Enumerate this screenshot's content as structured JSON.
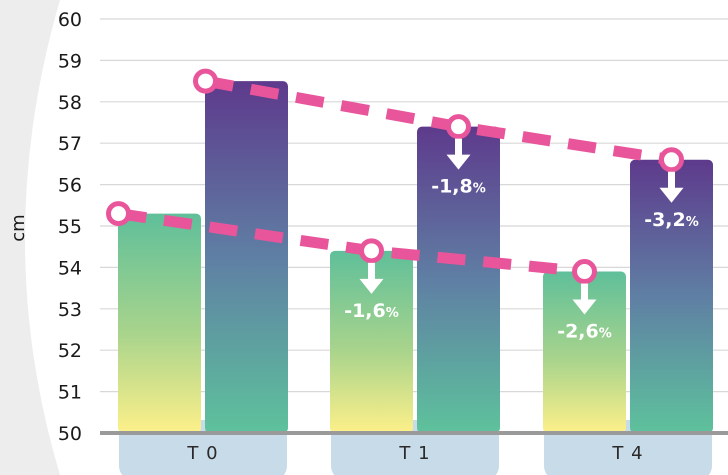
{
  "chart_data": {
    "type": "bar",
    "categories": [
      "T 0",
      "T 1",
      "T 4"
    ],
    "series": [
      {
        "values": [
          55.3,
          54.4,
          53.9
        ]
      },
      {
        "values": [
          58.5,
          57.4,
          56.6
        ]
      }
    ],
    "ylabel": "cm",
    "ylim": [
      50,
      60
    ],
    "yticks": [
      "50",
      "51",
      "52",
      "53",
      "54",
      "55",
      "56",
      "57",
      "58",
      "59",
      "60"
    ],
    "grid": true,
    "annotations": [
      {
        "series": 0,
        "category": 1,
        "text": "-1,6",
        "unit": "%"
      },
      {
        "series": 1,
        "category": 1,
        "text": "-1,8",
        "unit": "%"
      },
      {
        "series": 0,
        "category": 2,
        "text": "-2,6",
        "unit": "%"
      },
      {
        "series": 1,
        "category": 2,
        "text": "-3,2",
        "unit": "%"
      }
    ]
  },
  "colors": {
    "trend_line": "#e8559a",
    "bar_series0_top": "#5fbf9a",
    "bar_series0_bottom": "#fdf08a",
    "bar_series1_top": "#5e3a8c",
    "bar_series1_bottom": "#5ec29c",
    "category_pill": "#c8dbe8",
    "axis": "#9a9a9a",
    "grid": "#d8d8d8",
    "background_arc": "#e7e7e7"
  }
}
